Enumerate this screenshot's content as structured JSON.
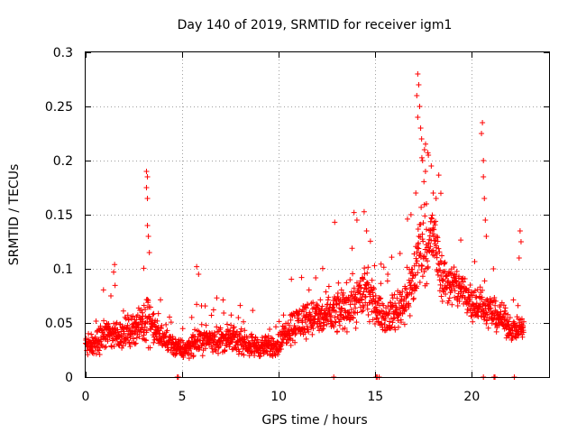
{
  "chart_data": {
    "type": "scatter",
    "title": "Day 140 of 2019, SRMTID for receiver igm1",
    "xlabel": "GPS time / hours",
    "ylabel": "SRMTID / TECUs",
    "xlim": [
      0,
      24
    ],
    "ylim": [
      0,
      0.3
    ],
    "x_ticks": [
      0,
      5,
      10,
      15,
      20
    ],
    "y_ticks": [
      0,
      0.05,
      0.1,
      0.15,
      0.2,
      0.25,
      0.3
    ],
    "x_tick_labels": [
      "0",
      "5",
      "10",
      "15",
      "20"
    ],
    "y_tick_labels": [
      "0",
      "0.05",
      "0.1",
      "0.15",
      "0.2",
      "0.25",
      "0.3"
    ],
    "grid": true,
    "marker": "+",
    "color": "#ff0000",
    "series": [
      {
        "name": "igm1",
        "profile": {
          "x": [
            0,
            0.5,
            1,
            1.5,
            2,
            2.5,
            3,
            3.2,
            3.5,
            4,
            4.5,
            5,
            5.5,
            6,
            6.5,
            7,
            7.5,
            8,
            8.5,
            9,
            9.5,
            10,
            10.5,
            11,
            11.5,
            12,
            12.5,
            13,
            13.5,
            14,
            14.5,
            15,
            15.5,
            16,
            16.5,
            17,
            17.3,
            17.6,
            18,
            18.5,
            19,
            19.5,
            20,
            20.5,
            21,
            21.5,
            22,
            22.5,
            22.7
          ],
          "median": [
            0.03,
            0.03,
            0.04,
            0.04,
            0.04,
            0.045,
            0.05,
            0.06,
            0.045,
            0.035,
            0.03,
            0.025,
            0.03,
            0.035,
            0.035,
            0.035,
            0.035,
            0.033,
            0.03,
            0.028,
            0.028,
            0.03,
            0.045,
            0.05,
            0.055,
            0.055,
            0.055,
            0.06,
            0.065,
            0.07,
            0.08,
            0.065,
            0.055,
            0.06,
            0.07,
            0.09,
            0.12,
            0.12,
            0.13,
            0.09,
            0.085,
            0.08,
            0.07,
            0.065,
            0.06,
            0.055,
            0.045,
            0.045,
            0.045
          ],
          "spread": [
            0.015,
            0.015,
            0.02,
            0.02,
            0.02,
            0.02,
            0.025,
            0.04,
            0.02,
            0.015,
            0.015,
            0.013,
            0.015,
            0.017,
            0.017,
            0.017,
            0.017,
            0.015,
            0.015,
            0.014,
            0.014,
            0.015,
            0.02,
            0.025,
            0.025,
            0.025,
            0.025,
            0.03,
            0.03,
            0.03,
            0.035,
            0.02,
            0.02,
            0.025,
            0.03,
            0.04,
            0.06,
            0.05,
            0.045,
            0.03,
            0.03,
            0.028,
            0.025,
            0.025,
            0.02,
            0.02,
            0.015,
            0.015,
            0.015
          ]
        },
        "peaks": [
          {
            "x": 1.5,
            "y": 0.104
          },
          {
            "x": 1.45,
            "y": 0.097
          },
          {
            "x": 3.15,
            "y": 0.19
          },
          {
            "x": 3.2,
            "y": 0.185
          },
          {
            "x": 3.15,
            "y": 0.175
          },
          {
            "x": 3.2,
            "y": 0.165
          },
          {
            "x": 3.2,
            "y": 0.14
          },
          {
            "x": 3.25,
            "y": 0.13
          },
          {
            "x": 3.3,
            "y": 0.115
          },
          {
            "x": 5.75,
            "y": 0.102
          },
          {
            "x": 5.85,
            "y": 0.095
          },
          {
            "x": 13.9,
            "y": 0.152
          },
          {
            "x": 14.05,
            "y": 0.145
          },
          {
            "x": 12.9,
            "y": 0.143
          },
          {
            "x": 14.55,
            "y": 0.135
          },
          {
            "x": 17.2,
            "y": 0.28
          },
          {
            "x": 17.25,
            "y": 0.27
          },
          {
            "x": 17.15,
            "y": 0.26
          },
          {
            "x": 17.3,
            "y": 0.25
          },
          {
            "x": 17.2,
            "y": 0.24
          },
          {
            "x": 17.35,
            "y": 0.23
          },
          {
            "x": 17.4,
            "y": 0.22
          },
          {
            "x": 17.45,
            "y": 0.2
          },
          {
            "x": 17.6,
            "y": 0.19
          },
          {
            "x": 17.55,
            "y": 0.21
          },
          {
            "x": 17.75,
            "y": 0.205
          },
          {
            "x": 17.9,
            "y": 0.195
          },
          {
            "x": 17.1,
            "y": 0.17
          },
          {
            "x": 17.65,
            "y": 0.16
          },
          {
            "x": 18.0,
            "y": 0.17
          },
          {
            "x": 18.15,
            "y": 0.165
          },
          {
            "x": 18.2,
            "y": 0.13
          },
          {
            "x": 16.85,
            "y": 0.15
          },
          {
            "x": 20.55,
            "y": 0.235
          },
          {
            "x": 20.5,
            "y": 0.225
          },
          {
            "x": 20.6,
            "y": 0.2
          },
          {
            "x": 20.6,
            "y": 0.185
          },
          {
            "x": 20.65,
            "y": 0.165
          },
          {
            "x": 20.7,
            "y": 0.145
          },
          {
            "x": 20.75,
            "y": 0.13
          },
          {
            "x": 22.5,
            "y": 0.135
          },
          {
            "x": 22.55,
            "y": 0.125
          },
          {
            "x": 22.45,
            "y": 0.11
          }
        ],
        "zeros": [
          4.75,
          4.8,
          12.85,
          15.05,
          15.1,
          15.2,
          20.6,
          21.15,
          21.2,
          22.2
        ]
      }
    ]
  }
}
